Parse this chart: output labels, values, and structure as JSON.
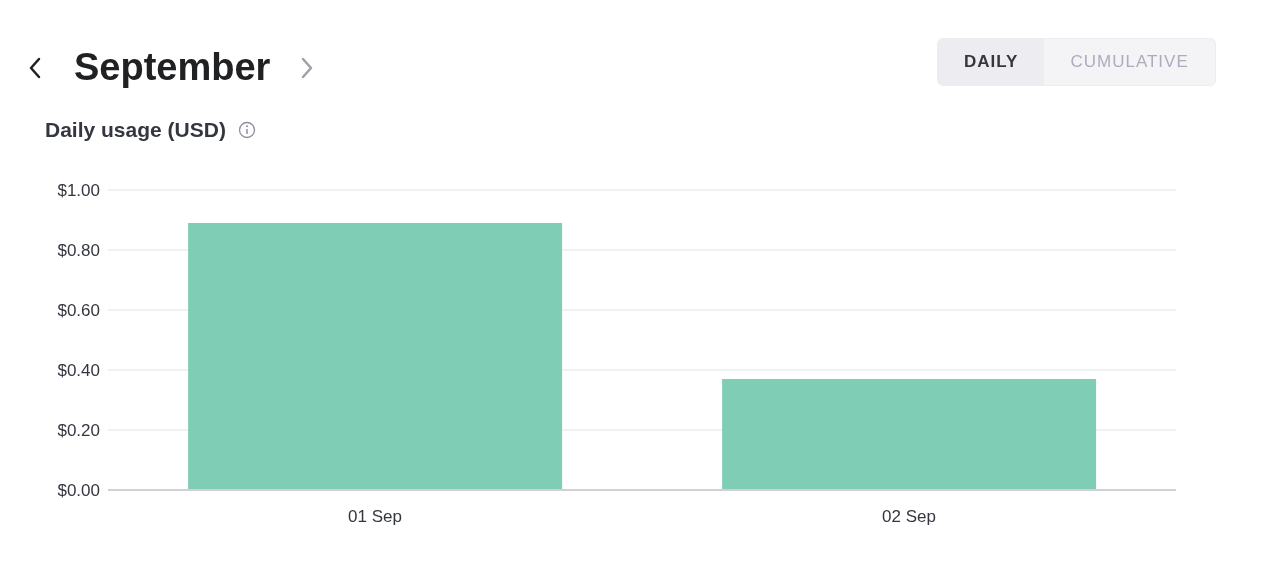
{
  "chart_data": {
    "type": "bar",
    "title": "September",
    "subtitle": "Daily usage (USD)",
    "categories": [
      "01 Sep",
      "02 Sep"
    ],
    "values": [
      0.89,
      0.37
    ],
    "color": "#7fcdb5",
    "ylim": [
      0,
      1
    ],
    "yticks": [
      {
        "value": 0,
        "label": "$0.00"
      },
      {
        "value": 0.2,
        "label": "$0.20"
      },
      {
        "value": 0.4,
        "label": "$0.40"
      },
      {
        "value": 0.6,
        "label": "$0.60"
      },
      {
        "value": 0.8,
        "label": "$0.80"
      },
      {
        "value": 1,
        "label": "$1.00"
      }
    ],
    "grid": "y",
    "annotations": [
      "DAILY",
      "CUMULATIVE"
    ]
  }
}
